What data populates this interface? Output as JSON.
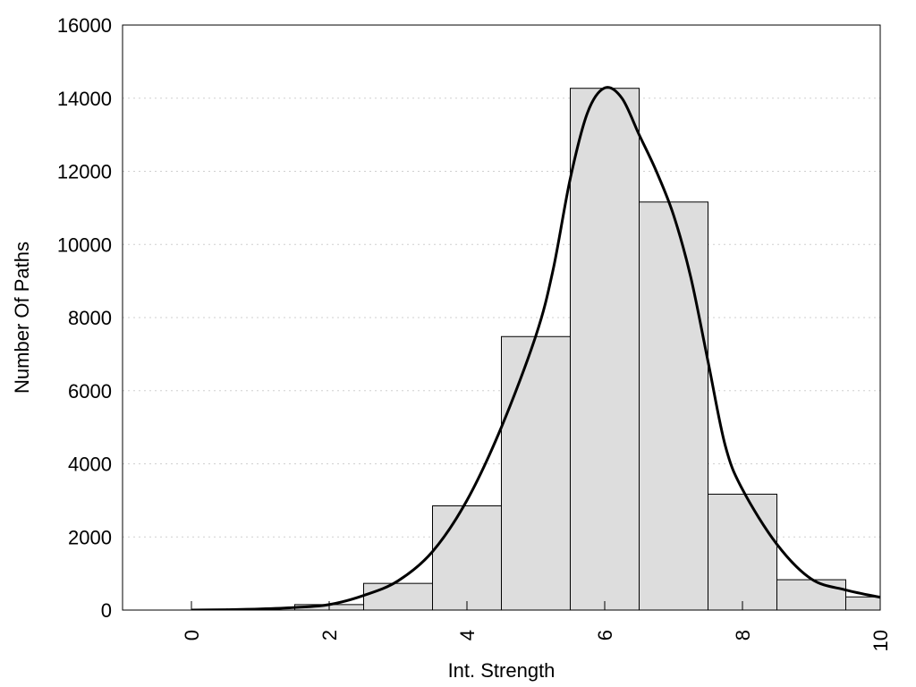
{
  "chart_data": {
    "type": "bar",
    "title": "",
    "xlabel": "Int. Strength",
    "ylabel": "Number Of Paths",
    "xlim": [
      -1,
      10
    ],
    "ylim": [
      0,
      16000
    ],
    "x_ticks": [
      0,
      2,
      4,
      6,
      8,
      10
    ],
    "y_ticks": [
      0,
      2000,
      4000,
      6000,
      8000,
      10000,
      12000,
      14000,
      16000
    ],
    "grid": "horizontal",
    "bar_color": "#dddddd",
    "bins": [
      {
        "x0": -0.5,
        "x1": 0.5,
        "value": 0
      },
      {
        "x0": 0.5,
        "x1": 1.5,
        "value": 0
      },
      {
        "x0": 1.5,
        "x1": 2.5,
        "value": 150
      },
      {
        "x0": 2.5,
        "x1": 3.5,
        "value": 730
      },
      {
        "x0": 3.5,
        "x1": 4.5,
        "value": 2850
      },
      {
        "x0": 4.5,
        "x1": 5.5,
        "value": 7480
      },
      {
        "x0": 5.5,
        "x1": 6.5,
        "value": 14270
      },
      {
        "x0": 6.5,
        "x1": 7.5,
        "value": 11160
      },
      {
        "x0": 7.5,
        "x1": 8.5,
        "value": 3170
      },
      {
        "x0": 8.5,
        "x1": 9.5,
        "value": 830
      },
      {
        "x0": 9.5,
        "x1": 10.5,
        "value": 360
      }
    ],
    "curve": {
      "x": [
        0,
        0.5,
        1,
        1.5,
        2,
        2.5,
        3,
        3.5,
        4,
        4.5,
        5,
        5.25,
        5.5,
        5.75,
        6,
        6.25,
        6.5,
        6.75,
        7,
        7.25,
        7.5,
        7.75,
        8,
        8.5,
        9,
        9.5,
        10
      ],
      "y": [
        0,
        10,
        30,
        70,
        150,
        400,
        800,
        1600,
        3000,
        5000,
        7500,
        9300,
        11800,
        13600,
        14280,
        14000,
        13000,
        12000,
        10800,
        9100,
        6800,
        4500,
        3300,
        1800,
        850,
        550,
        350
      ]
    }
  }
}
